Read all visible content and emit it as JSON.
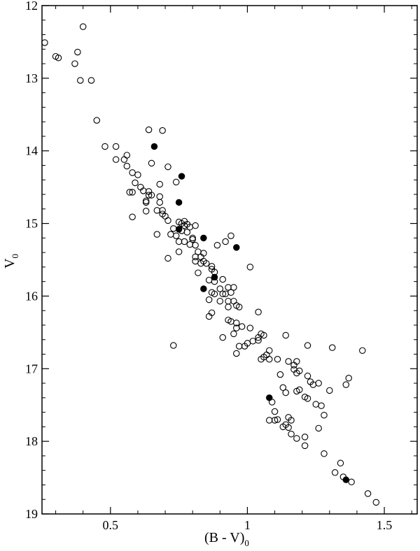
{
  "chart_data": {
    "type": "scatter",
    "title": "",
    "xlabel": "(B - V)",
    "xlabel_subscript": "0",
    "ylabel": "V",
    "ylabel_subscript": "0",
    "xlim": [
      0.25,
      1.62
    ],
    "ylim": [
      19.0,
      12.0
    ],
    "y_inverted": true,
    "grid": false,
    "x_ticks": [
      {
        "value": 0.5,
        "label": "0.5"
      },
      {
        "value": 1.0,
        "label": "1"
      },
      {
        "value": 1.5,
        "label": "1.5"
      }
    ],
    "x_minor_step": 0.1,
    "y_ticks": [
      {
        "value": 12,
        "label": "12"
      },
      {
        "value": 13,
        "label": "13"
      },
      {
        "value": 14,
        "label": "14"
      },
      {
        "value": 15,
        "label": "15"
      },
      {
        "value": 16,
        "label": "16"
      },
      {
        "value": 17,
        "label": "17"
      },
      {
        "value": 18,
        "label": "18"
      },
      {
        "value": 19,
        "label": "19"
      }
    ],
    "y_minor_step": 0.2,
    "series": [
      {
        "marker": "open-circle",
        "points": [
          [
            0.26,
            12.51
          ],
          [
            0.4,
            12.29
          ],
          [
            0.3,
            12.7
          ],
          [
            0.31,
            12.72
          ],
          [
            0.38,
            12.64
          ],
          [
            0.37,
            12.8
          ],
          [
            0.39,
            13.03
          ],
          [
            0.43,
            13.03
          ],
          [
            0.45,
            13.58
          ],
          [
            0.64,
            13.71
          ],
          [
            0.69,
            13.72
          ],
          [
            0.48,
            13.94
          ],
          [
            0.52,
            13.94
          ],
          [
            0.56,
            14.06
          ],
          [
            0.52,
            14.12
          ],
          [
            0.55,
            14.12
          ],
          [
            0.65,
            14.17
          ],
          [
            0.56,
            14.21
          ],
          [
            0.71,
            14.22
          ],
          [
            0.58,
            14.3
          ],
          [
            0.6,
            14.33
          ],
          [
            0.59,
            14.44
          ],
          [
            0.74,
            14.43
          ],
          [
            0.61,
            14.5
          ],
          [
            0.68,
            14.46
          ],
          [
            0.62,
            14.55
          ],
          [
            0.64,
            14.56
          ],
          [
            0.57,
            14.57
          ],
          [
            0.58,
            14.57
          ],
          [
            0.64,
            14.61
          ],
          [
            0.65,
            14.61
          ],
          [
            0.68,
            14.63
          ],
          [
            0.63,
            14.69
          ],
          [
            0.63,
            14.71
          ],
          [
            0.68,
            14.71
          ],
          [
            0.63,
            14.83
          ],
          [
            0.67,
            14.82
          ],
          [
            0.69,
            14.82
          ],
          [
            0.69,
            14.87
          ],
          [
            0.7,
            14.9
          ],
          [
            0.71,
            14.96
          ],
          [
            0.58,
            14.91
          ],
          [
            0.75,
            14.98
          ],
          [
            0.76,
            15.0
          ],
          [
            0.77,
            14.97
          ],
          [
            0.78,
            15.01
          ],
          [
            0.77,
            15.03
          ],
          [
            0.79,
            15.05
          ],
          [
            0.81,
            15.03
          ],
          [
            0.73,
            15.07
          ],
          [
            0.76,
            15.1
          ],
          [
            0.78,
            15.12
          ],
          [
            0.67,
            15.15
          ],
          [
            0.72,
            15.15
          ],
          [
            0.74,
            15.17
          ],
          [
            0.75,
            15.25
          ],
          [
            0.77,
            15.25
          ],
          [
            0.8,
            15.22
          ],
          [
            0.79,
            15.29
          ],
          [
            0.81,
            15.3
          ],
          [
            0.8,
            15.2
          ],
          [
            0.92,
            15.25
          ],
          [
            0.94,
            15.17
          ],
          [
            0.89,
            15.3
          ],
          [
            0.75,
            15.39
          ],
          [
            0.82,
            15.39
          ],
          [
            0.81,
            15.46
          ],
          [
            0.83,
            15.46
          ],
          [
            0.84,
            15.41
          ],
          [
            0.71,
            15.48
          ],
          [
            0.81,
            15.52
          ],
          [
            0.84,
            15.52
          ],
          [
            0.83,
            15.55
          ],
          [
            0.85,
            15.55
          ],
          [
            0.87,
            15.59
          ],
          [
            0.87,
            15.63
          ],
          [
            0.88,
            15.67
          ],
          [
            0.82,
            15.68
          ],
          [
            1.01,
            15.6
          ],
          [
            0.86,
            15.78
          ],
          [
            0.91,
            15.77
          ],
          [
            0.88,
            15.8
          ],
          [
            0.87,
            15.95
          ],
          [
            0.9,
            15.9
          ],
          [
            0.93,
            15.88
          ],
          [
            0.95,
            15.88
          ],
          [
            0.88,
            15.97
          ],
          [
            0.91,
            15.97
          ],
          [
            0.92,
            15.97
          ],
          [
            0.94,
            15.95
          ],
          [
            0.86,
            16.05
          ],
          [
            0.9,
            16.07
          ],
          [
            0.93,
            16.07
          ],
          [
            0.95,
            16.07
          ],
          [
            0.96,
            16.13
          ],
          [
            0.93,
            16.15
          ],
          [
            0.97,
            16.15
          ],
          [
            0.87,
            16.23
          ],
          [
            1.04,
            16.22
          ],
          [
            0.86,
            16.28
          ],
          [
            0.93,
            16.33
          ],
          [
            0.94,
            16.35
          ],
          [
            0.96,
            16.37
          ],
          [
            0.96,
            16.44
          ],
          [
            0.98,
            16.42
          ],
          [
            1.01,
            16.44
          ],
          [
            0.95,
            16.52
          ],
          [
            1.05,
            16.52
          ],
          [
            1.06,
            16.54
          ],
          [
            0.91,
            16.57
          ],
          [
            1.04,
            16.57
          ],
          [
            1.02,
            16.62
          ],
          [
            1.04,
            16.61
          ],
          [
            1.0,
            16.65
          ],
          [
            0.99,
            16.69
          ],
          [
            0.97,
            16.69
          ],
          [
            0.73,
            16.68
          ],
          [
            1.14,
            16.54
          ],
          [
            1.22,
            16.68
          ],
          [
            1.31,
            16.71
          ],
          [
            1.42,
            16.75
          ],
          [
            0.96,
            16.79
          ],
          [
            1.08,
            16.75
          ],
          [
            1.07,
            16.81
          ],
          [
            1.06,
            16.84
          ],
          [
            1.05,
            16.87
          ],
          [
            1.08,
            16.87
          ],
          [
            1.11,
            16.87
          ],
          [
            1.15,
            16.9
          ],
          [
            1.18,
            16.9
          ],
          [
            1.17,
            16.95
          ],
          [
            1.17,
            17.01
          ],
          [
            1.19,
            17.03
          ],
          [
            1.18,
            17.06
          ],
          [
            1.22,
            17.1
          ],
          [
            1.12,
            17.08
          ],
          [
            1.37,
            17.13
          ],
          [
            1.23,
            17.18
          ],
          [
            1.24,
            17.22
          ],
          [
            1.26,
            17.2
          ],
          [
            1.36,
            17.22
          ],
          [
            1.13,
            17.26
          ],
          [
            1.19,
            17.29
          ],
          [
            1.18,
            17.31
          ],
          [
            1.14,
            17.33
          ],
          [
            1.3,
            17.3
          ],
          [
            1.21,
            17.39
          ],
          [
            1.22,
            17.41
          ],
          [
            1.09,
            17.46
          ],
          [
            1.25,
            17.49
          ],
          [
            1.27,
            17.51
          ],
          [
            1.1,
            17.59
          ],
          [
            1.28,
            17.64
          ],
          [
            1.15,
            17.67
          ],
          [
            1.11,
            17.7
          ],
          [
            1.1,
            17.71
          ],
          [
            1.08,
            17.71
          ],
          [
            1.16,
            17.71
          ],
          [
            1.14,
            17.77
          ],
          [
            1.13,
            17.8
          ],
          [
            1.15,
            17.81
          ],
          [
            1.26,
            17.82
          ],
          [
            1.16,
            17.9
          ],
          [
            1.18,
            17.96
          ],
          [
            1.21,
            17.94
          ],
          [
            1.21,
            18.06
          ],
          [
            1.28,
            18.17
          ],
          [
            1.34,
            18.3
          ],
          [
            1.32,
            18.43
          ],
          [
            1.35,
            18.49
          ],
          [
            1.38,
            18.56
          ],
          [
            1.44,
            18.72
          ],
          [
            1.47,
            18.84
          ]
        ]
      },
      {
        "marker": "filled-circle",
        "points": [
          [
            0.66,
            13.94
          ],
          [
            0.76,
            14.35
          ],
          [
            0.75,
            14.71
          ],
          [
            0.75,
            15.08
          ],
          [
            0.84,
            15.2
          ],
          [
            0.96,
            15.33
          ],
          [
            0.88,
            15.74
          ],
          [
            0.84,
            15.9
          ],
          [
            1.08,
            17.4
          ],
          [
            1.36,
            18.53
          ]
        ]
      }
    ]
  }
}
